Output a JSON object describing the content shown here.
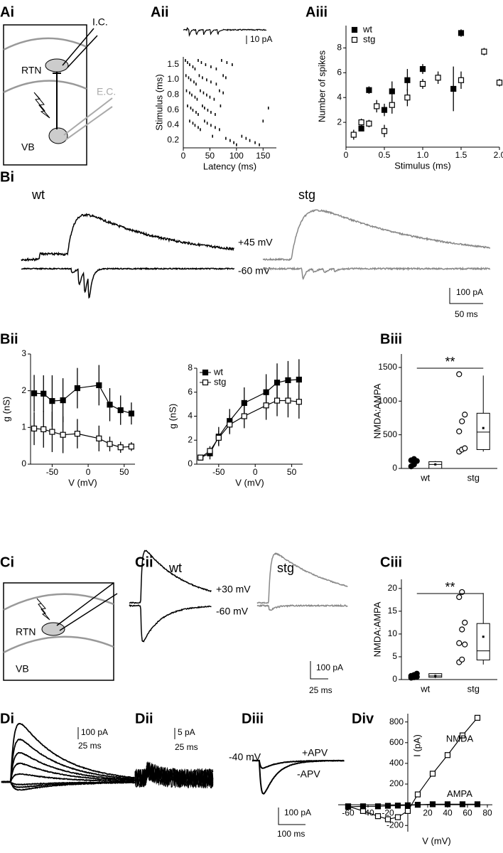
{
  "panel_labels": [
    "Ai",
    "Aii",
    "Aiii",
    "Bi",
    "Bii",
    "Biii",
    "Ci",
    "Cii",
    "Ciii",
    "Di",
    "Dii",
    "Diii",
    "Div"
  ],
  "diagram_A": {
    "labels": [
      "I.C.",
      "RTN",
      "E.C.",
      "VB"
    ]
  },
  "diagram_C": {
    "labels": [
      "RTN",
      "VB"
    ]
  },
  "Bi": {
    "groups": [
      "wt",
      "stg"
    ],
    "potentials": [
      "+45 mV",
      "-60 mV"
    ],
    "scale": [
      "100 pA",
      "50 ms"
    ]
  },
  "Cii": {
    "groups": [
      "wt",
      "stg"
    ],
    "potentials": [
      "+30 mV",
      "-60 mV"
    ],
    "scale": [
      "100 pA",
      "25 ms"
    ]
  },
  "Di": {
    "scale": [
      "100 pA",
      "25 ms"
    ]
  },
  "Dii": {
    "scale": [
      "5 pA",
      "25 ms"
    ]
  },
  "Diii": {
    "labels": [
      "-40 mV",
      "+APV",
      "-APV"
    ],
    "scale": [
      "100 pA",
      "100 ms"
    ]
  },
  "chart_data": [
    {
      "type": "raster",
      "xlabel": "Latency (ms)",
      "ylabel": "Stimulus (ms)",
      "scale_label": "10 pA",
      "categories": [
        "0.2",
        "0.4",
        "0.6",
        "0.8",
        "1.0",
        "1.5"
      ],
      "rows": [
        [
          55,
          80,
          88,
          95,
          100,
          110,
          118,
          125,
          135,
          143
        ],
        [
          12,
          18,
          22,
          28,
          32,
          40,
          45,
          52,
          60,
          68,
          150
        ],
        [
          8,
          14,
          18,
          24,
          28,
          36,
          40,
          46,
          52,
          60,
          70,
          160
        ],
        [
          6,
          12,
          16,
          22,
          26,
          32,
          38,
          44,
          50,
          58,
          68,
          75
        ],
        [
          5,
          10,
          14,
          20,
          24,
          30,
          36,
          44,
          52,
          62,
          75,
          80
        ],
        [
          4,
          8,
          12,
          18,
          22,
          28,
          34,
          42,
          52,
          62,
          72,
          82,
          92
        ]
      ],
      "xlim": [
        0,
        175
      ],
      "xticks": [
        0,
        50,
        100,
        150
      ]
    },
    {
      "type": "scatter",
      "xlabel": "Stimulus (ms)",
      "ylabel": "Number of spikes",
      "xlim": [
        0,
        2
      ],
      "xticks": [
        0,
        0.5,
        {
          "value": 1,
          "label": "1.0"
        },
        1.5,
        {
          "value": 2,
          "label": "2.0"
        }
      ],
      "ylim": [
        0,
        9.8
      ],
      "yticks": [
        2,
        4,
        6,
        8
      ],
      "legend": "upper-left",
      "series": [
        {
          "name": "wt",
          "marker": "filled",
          "x": [
            0.2,
            0.3,
            0.5,
            0.6,
            0.8,
            1.0,
            1.4,
            1.5
          ],
          "values": [
            1.5,
            4.6,
            3.0,
            4.5,
            5.4,
            6.3,
            4.7,
            9.2
          ],
          "errors": [
            0.2,
            0.3,
            0.5,
            0.8,
            0.9,
            0.4,
            1.8,
            0.3
          ]
        },
        {
          "name": "stg",
          "marker": "open",
          "x": [
            0.1,
            0.2,
            0.3,
            0.4,
            0.5,
            0.6,
            0.8,
            1.0,
            1.2,
            1.5,
            1.8,
            2.0
          ],
          "values": [
            1.0,
            2.0,
            1.9,
            3.3,
            1.3,
            3.4,
            4.0,
            5.1,
            5.6,
            5.4,
            7.7,
            5.2
          ],
          "errors": [
            0.4,
            0.3,
            0.3,
            0.5,
            0.5,
            0.7,
            0.7,
            0.4,
            0.5,
            0.7,
            0.3,
            0.3
          ]
        }
      ]
    },
    {
      "type": "line",
      "xlabel": "V (mV)",
      "ylabel": "g (nS)",
      "xlim": [
        -80,
        65
      ],
      "xticks": [
        -50,
        0,
        50
      ],
      "ylim": [
        0,
        3
      ],
      "yticks": [
        0,
        1,
        2,
        3
      ],
      "x": [
        -75,
        -62,
        -50,
        -35,
        -15,
        15,
        30,
        45,
        60
      ],
      "series": [
        {
          "name": "wt",
          "marker": "filled",
          "values": [
            1.93,
            1.92,
            1.72,
            1.74,
            2.07,
            2.15,
            1.62,
            1.47,
            1.38
          ],
          "errors": [
            0.5,
            0.5,
            0.7,
            0.6,
            0.55,
            0.55,
            0.45,
            0.4,
            0.3
          ]
        },
        {
          "name": "stg",
          "marker": "open",
          "values": [
            0.97,
            0.95,
            0.88,
            0.8,
            0.83,
            0.7,
            0.55,
            0.46,
            0.48
          ],
          "errors": [
            0.45,
            0.5,
            0.55,
            0.5,
            0.4,
            0.35,
            0.2,
            0.15,
            0.12
          ]
        }
      ]
    },
    {
      "type": "line",
      "xlabel": "V (mV)",
      "ylabel": "g (nS)",
      "xlim": [
        -80,
        65
      ],
      "xticks": [
        -50,
        0,
        50
      ],
      "ylim": [
        0,
        8
      ],
      "yticks": [
        0,
        2,
        4,
        6,
        8
      ],
      "legend": "upper-left",
      "x": [
        -75,
        -62,
        -50,
        -35,
        -15,
        15,
        30,
        45,
        60
      ],
      "series": [
        {
          "name": "wt",
          "marker": "filled",
          "values": [
            0.55,
            0.9,
            2.3,
            3.6,
            5.1,
            6.0,
            6.8,
            7.0,
            7.05
          ],
          "errors": [
            0.15,
            0.5,
            0.8,
            1.0,
            1.3,
            1.5,
            1.6,
            1.6,
            1.7
          ]
        },
        {
          "name": "stg",
          "marker": "open",
          "values": [
            0.55,
            1.1,
            2.2,
            3.3,
            4.0,
            4.9,
            5.3,
            5.3,
            5.2
          ],
          "errors": [
            0.1,
            0.4,
            0.6,
            0.8,
            1.0,
            1.2,
            1.3,
            1.4,
            1.4
          ]
        }
      ]
    },
    {
      "type": "box",
      "ylabel": "NMDA:AMPA",
      "ylim": [
        0,
        1700
      ],
      "yticks": [
        0,
        500,
        1000,
        1500
      ],
      "categories": [
        "wt",
        "stg"
      ],
      "annotation": "**",
      "point_style": [
        "filled",
        "open"
      ],
      "points": [
        [
          30,
          60,
          110,
          120,
          140
        ],
        [
          250,
          280,
          300,
          550,
          700,
          800,
          1400
        ]
      ],
      "boxes": [
        {
          "whisker_low": 0,
          "q1": 0,
          "median": 60,
          "q3": 100,
          "whisker_high": 110,
          "mean": 60
        },
        {
          "whisker_low": 250,
          "q1": 280,
          "median": 540,
          "q3": 820,
          "whisker_high": 1380,
          "mean": 600
        }
      ]
    },
    {
      "type": "box",
      "ylabel": "NMDA:AMPA",
      "ylim": [
        0,
        22
      ],
      "yticks": [
        0,
        5,
        10,
        15,
        20
      ],
      "categories": [
        "wt",
        "stg"
      ],
      "annotation": "**",
      "point_style": [
        "filled",
        "open"
      ],
      "points": [
        [
          0.4,
          0.5,
          0.6,
          0.8,
          1.0,
          1.3
        ],
        [
          3.8,
          4.4,
          7.7,
          8,
          11,
          12.5,
          18.1,
          19.2
        ]
      ],
      "boxes": [
        {
          "whisker_low": 0.3,
          "q1": 0.5,
          "median": 0.8,
          "q3": 1.3,
          "whisker_high": 1.4,
          "mean": 0.8
        },
        {
          "whisker_low": 3.3,
          "q1": 4.3,
          "median": 6.3,
          "q3": 12.3,
          "whisker_high": 19,
          "mean": 9.4
        }
      ]
    },
    {
      "type": "line",
      "xlabel": "V (mV)",
      "ylabel": "I (pA)",
      "axes_at_origin": true,
      "legend": "inline",
      "xlim": [
        -70,
        85
      ],
      "xticks": [
        -60,
        -40,
        -20,
        20,
        40,
        60,
        80
      ],
      "ylim": [
        -260,
        880
      ],
      "yticks": [
        -200,
        200,
        400,
        600,
        800
      ],
      "x": [
        -60,
        -45,
        -30,
        -20,
        -10,
        0,
        10,
        25,
        40,
        55,
        70
      ],
      "series": [
        {
          "name": "NMDA",
          "marker": "open",
          "values": [
            -15,
            -60,
            -110,
            -140,
            -120,
            -60,
            100,
            300,
            480,
            670,
            840
          ]
        },
        {
          "name": "AMPA",
          "marker": "filled",
          "values": [
            -20,
            -15,
            -15,
            -10,
            -8,
            -5,
            0,
            5,
            5,
            5,
            5
          ]
        }
      ]
    }
  ]
}
